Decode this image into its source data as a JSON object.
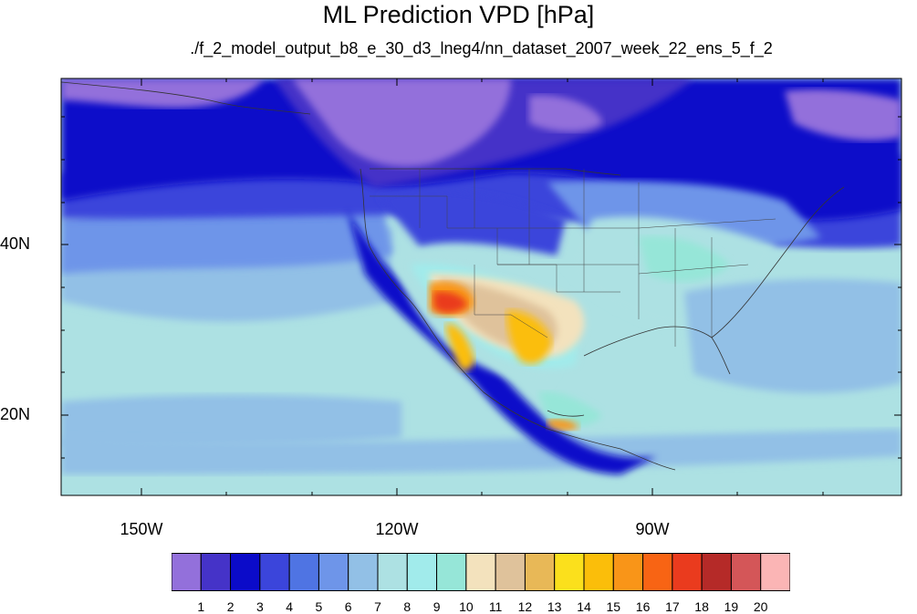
{
  "title": "ML Prediction VPD [hPa]",
  "subtitle": "./f_2_model_output_b8_e_30_d3_lneg4/nn_dataset_2007_week_22_ens_5_f_2",
  "axes": {
    "lon_labels": [
      "150W",
      "120W",
      "90W"
    ],
    "lat_labels": [
      "40N",
      "20N"
    ]
  },
  "colorbar": {
    "labels": [
      "1",
      "2",
      "3",
      "4",
      "5",
      "6",
      "7",
      "8",
      "9",
      "10",
      "11",
      "12",
      "13",
      "14",
      "15",
      "16",
      "17",
      "18",
      "19",
      "20"
    ],
    "colors": [
      "#9370db",
      "#4533c8",
      "#0b0bc9",
      "#3b45db",
      "#4f74e3",
      "#6e95e9",
      "#92c0e6",
      "#ade1e3",
      "#a1ebeb",
      "#96e6d8",
      "#f3e2bd",
      "#dfc29b",
      "#e8b857",
      "#fbe01c",
      "#fbbe0a",
      "#f99518",
      "#f86414",
      "#ea3b1e",
      "#b52a28",
      "#d45658",
      "#fbb5b5"
    ]
  },
  "map": {
    "ocean_pacific_far": "#ade1e3",
    "ocean_pacific_mid": "#92c0e6",
    "ocean_pacific_band": "#6e95e9",
    "north_band": "#0b0bc9",
    "north_band_light": "#3b45db",
    "hot_core": "#ea3b1e",
    "warm_core": "#fbbe0a"
  }
}
